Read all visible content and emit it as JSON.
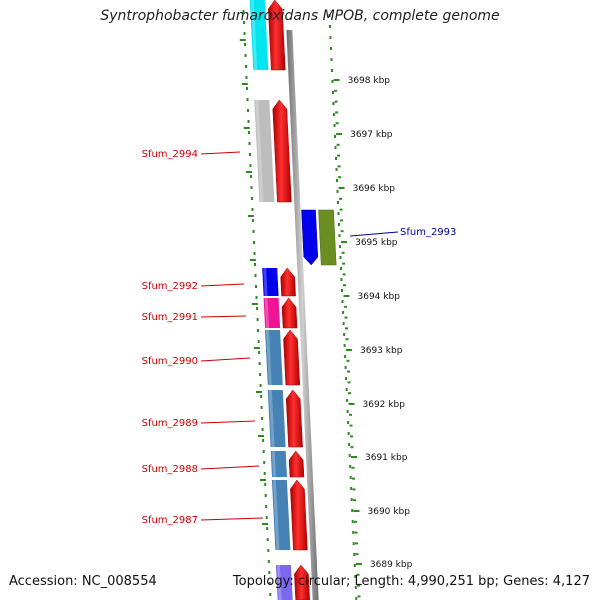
{
  "title": "Syntrophobacter fumaroxidans MPOB, complete genome",
  "accession": "Accession: NC_008554",
  "topology": "Topology: circular; Length: 4,990,251 bp; Genes: 4,127",
  "colors": {
    "label_red": "#cc0000",
    "label_blue": "#000099",
    "tick_green": "#2e8b20",
    "backbone": "#8c8c8c",
    "cds": "#ee0000"
  },
  "ticks": [
    {
      "label": "3698 kbp"
    },
    {
      "label": "3697 kbp"
    },
    {
      "label": "3696 kbp"
    },
    {
      "label": "3695 kbp"
    },
    {
      "label": "3694 kbp"
    },
    {
      "label": "3693 kbp"
    },
    {
      "label": "3692 kbp"
    },
    {
      "label": "3691 kbp"
    },
    {
      "label": "3690 kbp"
    },
    {
      "label": "3689 kbp"
    }
  ],
  "labels": [
    {
      "text": "Sfum_2994",
      "color": "#cc0000"
    },
    {
      "text": "Sfum_2993",
      "color": "#000099"
    },
    {
      "text": "Sfum_2992",
      "color": "#cc0000"
    },
    {
      "text": "Sfum_2991",
      "color": "#cc0000"
    },
    {
      "text": "Sfum_2990",
      "color": "#cc0000"
    },
    {
      "text": "Sfum_2989",
      "color": "#cc0000"
    },
    {
      "text": "Sfum_2988",
      "color": "#cc0000"
    },
    {
      "text": "Sfum_2987",
      "color": "#cc0000"
    }
  ],
  "genes": [
    {
      "strand": "reverse",
      "cog_color": "#00e5ee"
    },
    {
      "strand": "reverse",
      "cog_color": "#bdbdbd"
    },
    {
      "strand": "forward",
      "cog_color": "#6b8e23"
    },
    {
      "strand": "reverse",
      "cog_color": "#0000ee"
    },
    {
      "strand": "reverse",
      "cog_color": "#ee1493"
    },
    {
      "strand": "reverse",
      "cog_color": "#4682b4"
    },
    {
      "strand": "reverse",
      "cog_color": "#4682b4"
    },
    {
      "strand": "reverse",
      "cog_color": "#4682b4"
    },
    {
      "strand": "reverse",
      "cog_color": "#4682b4"
    },
    {
      "strand": "reverse",
      "cog_color": "#7b68ee"
    }
  ]
}
